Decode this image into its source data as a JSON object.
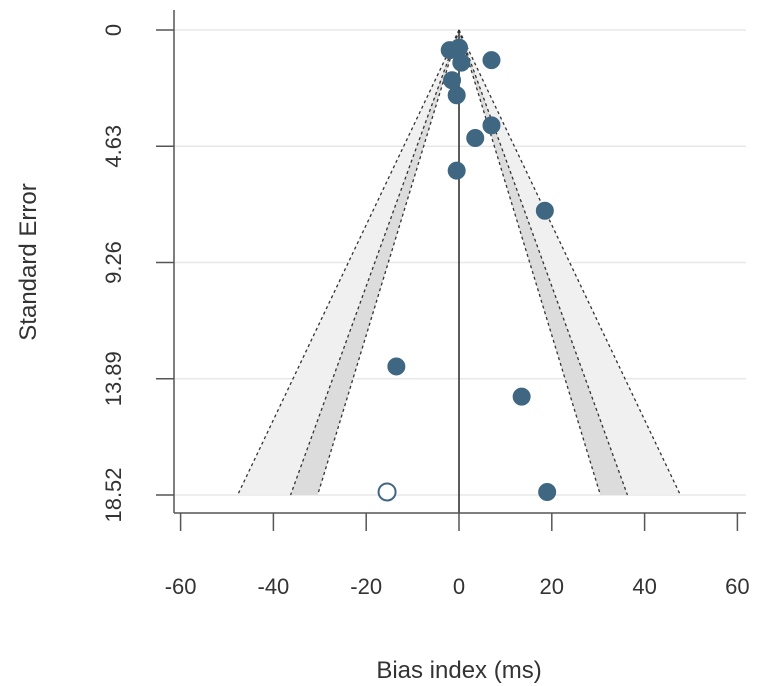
{
  "chart_data": {
    "type": "scatter",
    "subtype": "funnel plot",
    "title": "",
    "xlabel": "Bias index (ms)",
    "ylabel": "Standard Error",
    "xlim": [
      -60,
      60
    ],
    "ylim": [
      18.52,
      0
    ],
    "y_axis_inverted": true,
    "x_ticks": [
      "-60",
      "-40",
      "-20",
      "0",
      "20",
      "40",
      "60"
    ],
    "y_ticks": [
      "0",
      "4.63",
      "9.26",
      "13.89",
      "18.52"
    ],
    "grid": "horizontal",
    "pooled_estimate": 0,
    "funnel_contours": [
      {
        "level": "90%",
        "z": 1.645
      },
      {
        "level": "95%",
        "z": 1.96
      },
      {
        "level": "99%",
        "z": 2.576
      }
    ],
    "series": [
      {
        "marker": "filled",
        "color": "#3f6782",
        "points": [
          {
            "x": -2.0,
            "y": 0.8
          },
          {
            "x": 0.0,
            "y": 0.7
          },
          {
            "x": 0.5,
            "y": 1.3
          },
          {
            "x": 7.0,
            "y": 1.2
          },
          {
            "x": -1.5,
            "y": 2.0
          },
          {
            "x": -0.5,
            "y": 2.6
          },
          {
            "x": 7.0,
            "y": 3.8
          },
          {
            "x": 3.5,
            "y": 4.3
          },
          {
            "x": -0.5,
            "y": 5.6
          },
          {
            "x": 18.5,
            "y": 7.2
          },
          {
            "x": -13.5,
            "y": 13.4
          },
          {
            "x": 13.5,
            "y": 14.6
          },
          {
            "x": 19.0,
            "y": 18.4
          }
        ]
      },
      {
        "marker": "hollow",
        "color": "#3f6782",
        "points": [
          {
            "x": -15.5,
            "y": 18.4
          }
        ]
      }
    ],
    "colors": {
      "points": "#3f6782",
      "outer_band": "#f0f0f0",
      "inner_band": "#dcdcdc",
      "grid": "#e8e8e8",
      "axis": "#333333",
      "contour": "#333333"
    }
  }
}
